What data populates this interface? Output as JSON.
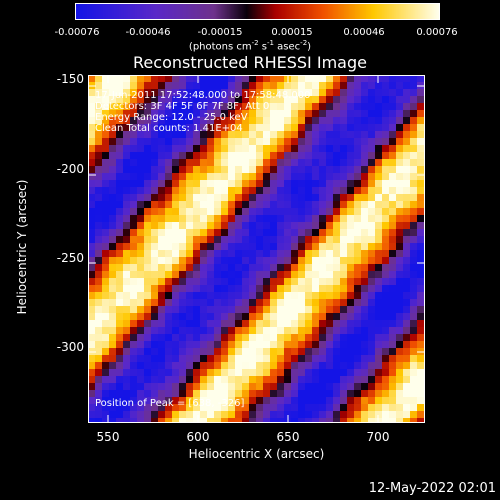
{
  "colorbar": {
    "ticks": [
      "-0.00076",
      "-0.00046",
      "-0.00015",
      "0.00015",
      "0.00046",
      "0.00076"
    ],
    "units_main": "(photons cm",
    "units_sup1": "-2",
    "units_s": " s",
    "units_sup2": "-1",
    "units_asec": " asec",
    "units_sup3": "-2",
    "units_close": ")"
  },
  "plot": {
    "title": "Reconstructed RHESSI Image",
    "xlabel": "Heliocentric X (arcsec)",
    "ylabel": "Heliocentric Y (arcsec)",
    "xticks": [
      "550",
      "600",
      "650",
      "700"
    ],
    "yticks": [
      "-150",
      "-200",
      "-250",
      "-300"
    ],
    "xlim": [
      530,
      725
    ],
    "ylim": [
      -335,
      -147
    ]
  },
  "info": {
    "time": "17-Jun-2011 17:52:48.000 to 17:58:48.000",
    "detectors": "Detectors: 3F 4F 5F 6F 7F 8F, Att 0",
    "energy": "Energy Range: 12.0 - 25.0 keV",
    "counts": "Clean    Total counts: 1.41E+04",
    "peak": "Position of Peak = [638, -326]"
  },
  "footer": {
    "timestamp": "12-May-2022 02:01"
  },
  "chart_data": {
    "type": "heatmap",
    "title": "Reconstructed RHESSI Image",
    "xlabel": "Heliocentric X (arcsec)",
    "ylabel": "Heliocentric Y (arcsec)",
    "xlim": [
      530,
      725
    ],
    "ylim": [
      -335,
      -147
    ],
    "colorbar_range": [
      -0.00076,
      0.00076
    ],
    "colormap": "blue-purple-red-yellow-white"
  }
}
